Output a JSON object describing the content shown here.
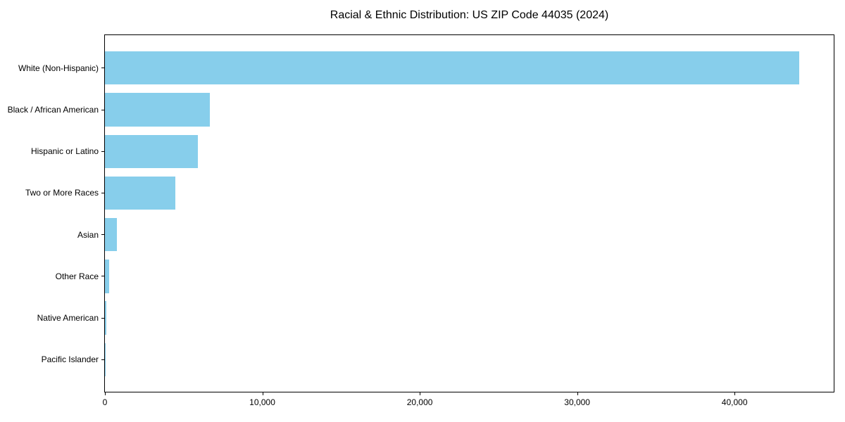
{
  "chart_data": {
    "type": "bar",
    "orientation": "horizontal",
    "title": "Racial & Ethnic Distribution: US ZIP Code 44035 (2024)",
    "categories": [
      "White (Non-Hispanic)",
      "Black / African American",
      "Hispanic or Latino",
      "Two or More Races",
      "Asian",
      "Other Race",
      "Native American",
      "Pacific Islander"
    ],
    "values": [
      44100,
      6650,
      5900,
      4480,
      740,
      250,
      90,
      20
    ],
    "bar_color": "#87CEEB",
    "xlabel": "",
    "ylabel": "",
    "xlim": [
      0,
      46300
    ],
    "xticks": {
      "values": [
        0,
        10000,
        20000,
        30000,
        40000
      ],
      "labels": [
        "0",
        "10,000",
        "20,000",
        "30,000",
        "40,000"
      ]
    },
    "grid": false,
    "legend_position": "none",
    "frame": "all-spines",
    "background_color": "#ffffff",
    "text_color": "#000000"
  }
}
